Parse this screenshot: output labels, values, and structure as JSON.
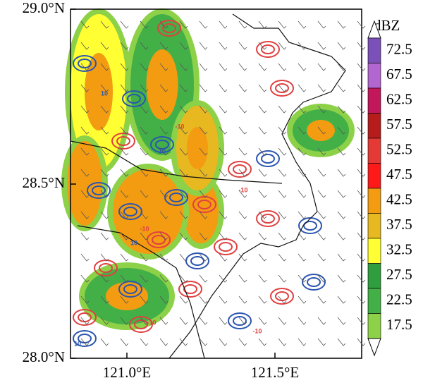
{
  "map": {
    "lat_labels": [
      "29.0°N",
      "28.5°N",
      "28.0°N"
    ],
    "lon_labels": [
      "121.0°E",
      "121.5°E"
    ],
    "contour_labels": [
      "10",
      "-10"
    ]
  },
  "colorbar": {
    "unit": "dBZ",
    "levels": [
      72.5,
      67.5,
      62.5,
      57.5,
      52.5,
      47.5,
      42.5,
      37.5,
      32.5,
      27.5,
      22.5,
      17.5
    ],
    "colors": [
      "#7b50b8",
      "#b266d0",
      "#c2185b",
      "#b71c1c",
      "#e53935",
      "#ff1a1a",
      "#f39c12",
      "#e8b820",
      "#ffff33",
      "#2e9e3e",
      "#43b047",
      "#8cd147"
    ]
  }
}
